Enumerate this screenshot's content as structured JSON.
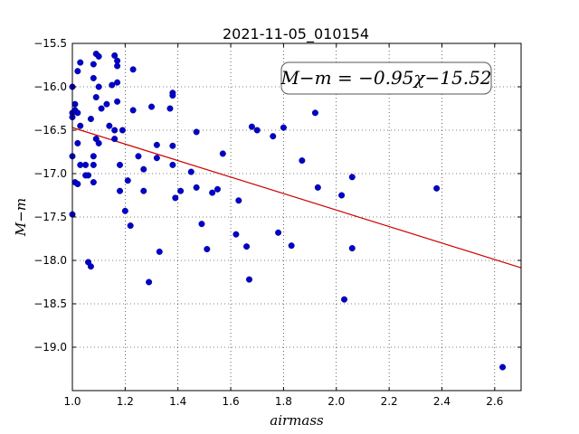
{
  "chart_data": {
    "type": "scatter",
    "title": "2021-11-05_010154",
    "xlabel": "airmass",
    "ylabel": "M−m",
    "xlim": [
      1.0,
      2.7
    ],
    "ylim": [
      -15.5,
      -19.5
    ],
    "y_inverted": true,
    "grid": true,
    "x_ticks": [
      1.0,
      1.2,
      1.4,
      1.6,
      1.8,
      2.0,
      2.2,
      2.4,
      2.6
    ],
    "x_tick_labels": [
      "1.0",
      "1.2",
      "1.4",
      "1.6",
      "1.8",
      "2.0",
      "2.2",
      "2.4",
      "2.6"
    ],
    "y_ticks": [
      -15.5,
      -16.0,
      -16.5,
      -17.0,
      -17.5,
      -18.0,
      -18.5,
      -19.0
    ],
    "y_tick_labels": [
      "−15.5",
      "−16.0",
      "−16.5",
      "−17.0",
      "−17.5",
      "−18.0",
      "−18.5",
      "−19.0"
    ],
    "annotation": "M−m = −0.95χ−15.52",
    "fit": {
      "slope": -0.95,
      "intercept": -15.52,
      "color": "#cc0000"
    },
    "point_color": "#0000cc",
    "points": [
      [
        1.0,
        -16.0
      ],
      [
        1.0,
        -16.3
      ],
      [
        1.0,
        -16.35
      ],
      [
        1.0,
        -16.8
      ],
      [
        1.0,
        -17.47
      ],
      [
        1.01,
        -16.2
      ],
      [
        1.01,
        -16.27
      ],
      [
        1.01,
        -17.1
      ],
      [
        1.02,
        -15.82
      ],
      [
        1.02,
        -16.3
      ],
      [
        1.02,
        -16.65
      ],
      [
        1.02,
        -17.12
      ],
      [
        1.03,
        -15.72
      ],
      [
        1.03,
        -16.45
      ],
      [
        1.03,
        -16.9
      ],
      [
        1.05,
        -16.9
      ],
      [
        1.05,
        -17.02
      ],
      [
        1.06,
        -17.02
      ],
      [
        1.06,
        -18.02
      ],
      [
        1.07,
        -16.37
      ],
      [
        1.07,
        -18.07
      ],
      [
        1.08,
        -15.9
      ],
      [
        1.08,
        -16.8
      ],
      [
        1.08,
        -16.9
      ],
      [
        1.08,
        -17.1
      ],
      [
        1.08,
        -15.74
      ],
      [
        1.09,
        -16.12
      ],
      [
        1.09,
        -16.6
      ],
      [
        1.09,
        -15.62
      ],
      [
        1.1,
        -15.65
      ],
      [
        1.1,
        -16.0
      ],
      [
        1.1,
        -16.65
      ],
      [
        1.11,
        -16.25
      ],
      [
        1.13,
        -16.2
      ],
      [
        1.14,
        -16.45
      ],
      [
        1.15,
        -15.98
      ],
      [
        1.16,
        -15.64
      ],
      [
        1.16,
        -16.5
      ],
      [
        1.16,
        -16.6
      ],
      [
        1.17,
        -15.7
      ],
      [
        1.17,
        -15.76
      ],
      [
        1.17,
        -15.95
      ],
      [
        1.17,
        -16.17
      ],
      [
        1.18,
        -16.9
      ],
      [
        1.18,
        -17.2
      ],
      [
        1.19,
        -16.5
      ],
      [
        1.2,
        -17.43
      ],
      [
        1.21,
        -17.08
      ],
      [
        1.22,
        -17.6
      ],
      [
        1.23,
        -15.8
      ],
      [
        1.23,
        -16.27
      ],
      [
        1.25,
        -16.8
      ],
      [
        1.27,
        -16.95
      ],
      [
        1.27,
        -17.2
      ],
      [
        1.29,
        -18.25
      ],
      [
        1.3,
        -16.23
      ],
      [
        1.32,
        -16.67
      ],
      [
        1.32,
        -16.82
      ],
      [
        1.33,
        -17.9
      ],
      [
        1.37,
        -16.25
      ],
      [
        1.38,
        -16.07
      ],
      [
        1.38,
        -16.1
      ],
      [
        1.38,
        -16.68
      ],
      [
        1.38,
        -16.9
      ],
      [
        1.39,
        -17.28
      ],
      [
        1.41,
        -17.2
      ],
      [
        1.45,
        -16.98
      ],
      [
        1.47,
        -16.52
      ],
      [
        1.47,
        -17.16
      ],
      [
        1.49,
        -17.58
      ],
      [
        1.51,
        -17.87
      ],
      [
        1.53,
        -17.22
      ],
      [
        1.55,
        -17.18
      ],
      [
        1.57,
        -16.77
      ],
      [
        1.62,
        -17.7
      ],
      [
        1.63,
        -17.31
      ],
      [
        1.66,
        -17.84
      ],
      [
        1.67,
        -18.22
      ],
      [
        1.68,
        -16.46
      ],
      [
        1.7,
        -16.5
      ],
      [
        1.76,
        -16.57
      ],
      [
        1.78,
        -17.68
      ],
      [
        1.8,
        -16.47
      ],
      [
        1.83,
        -17.83
      ],
      [
        1.87,
        -16.85
      ],
      [
        1.92,
        -16.3
      ],
      [
        1.93,
        -17.16
      ],
      [
        2.02,
        -17.25
      ],
      [
        2.03,
        -18.45
      ],
      [
        2.06,
        -17.04
      ],
      [
        2.06,
        -17.86
      ],
      [
        2.38,
        -17.17
      ],
      [
        2.63,
        -19.23
      ]
    ]
  }
}
